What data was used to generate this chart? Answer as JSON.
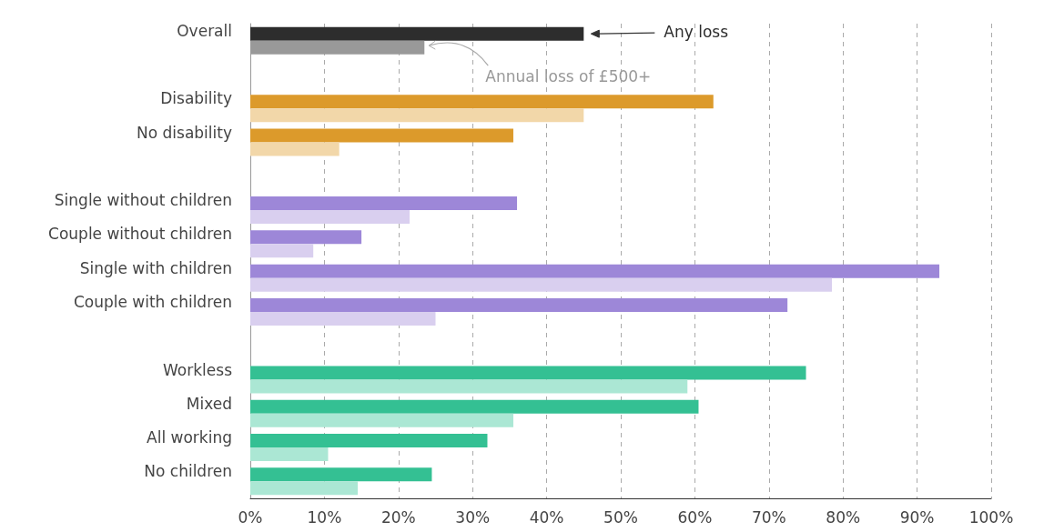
{
  "chart_data": {
    "type": "bar",
    "orientation": "horizontal",
    "categories": [
      "Overall",
      null,
      "Disability",
      "No disability",
      null,
      "Single without children",
      "Couple without children",
      "Single with children",
      "Couple with children",
      null,
      "Workless",
      "Mixed",
      "All working",
      "No children"
    ],
    "series": [
      {
        "name": "Any loss",
        "colors": [
          "#2d2d2d",
          null,
          "#dc9a2b",
          "#dc9a2b",
          null,
          "#9d87d8",
          "#9d87d8",
          "#9d87d8",
          "#9d87d8",
          null,
          "#34c093",
          "#34c093",
          "#34c093",
          "#34c093"
        ],
        "values": [
          45,
          null,
          62.5,
          35.5,
          null,
          36,
          15,
          93,
          72.5,
          null,
          75,
          60.5,
          32,
          24.5
        ]
      },
      {
        "name": "Annual loss of £500+",
        "colors": [
          "#999999",
          null,
          "#f2d7a9",
          "#f2d7a9",
          null,
          "#d9cfef",
          "#d9cfef",
          "#d9cfef",
          "#d9cfef",
          null,
          "#abe7d4",
          "#abe7d4",
          "#abe7d4",
          "#abe7d4"
        ],
        "values": [
          23.5,
          null,
          45,
          12,
          null,
          21.5,
          8.5,
          78.5,
          25,
          null,
          59,
          35.5,
          10.5,
          14.5
        ]
      }
    ],
    "xlim": [
      0,
      100
    ],
    "xticks": [
      {
        "value": 0,
        "label": "0%"
      },
      {
        "value": 10,
        "label": "10%"
      },
      {
        "value": 20,
        "label": "20%"
      },
      {
        "value": 30,
        "label": "30%"
      },
      {
        "value": 40,
        "label": "40%"
      },
      {
        "value": 50,
        "label": "50%"
      },
      {
        "value": 60,
        "label": "60%"
      },
      {
        "value": 70,
        "label": "70%"
      },
      {
        "value": 80,
        "label": "80%"
      },
      {
        "value": 90,
        "label": "90%"
      },
      {
        "value": 100,
        "label": "100%"
      }
    ],
    "grid": "x",
    "legend": "top"
  }
}
